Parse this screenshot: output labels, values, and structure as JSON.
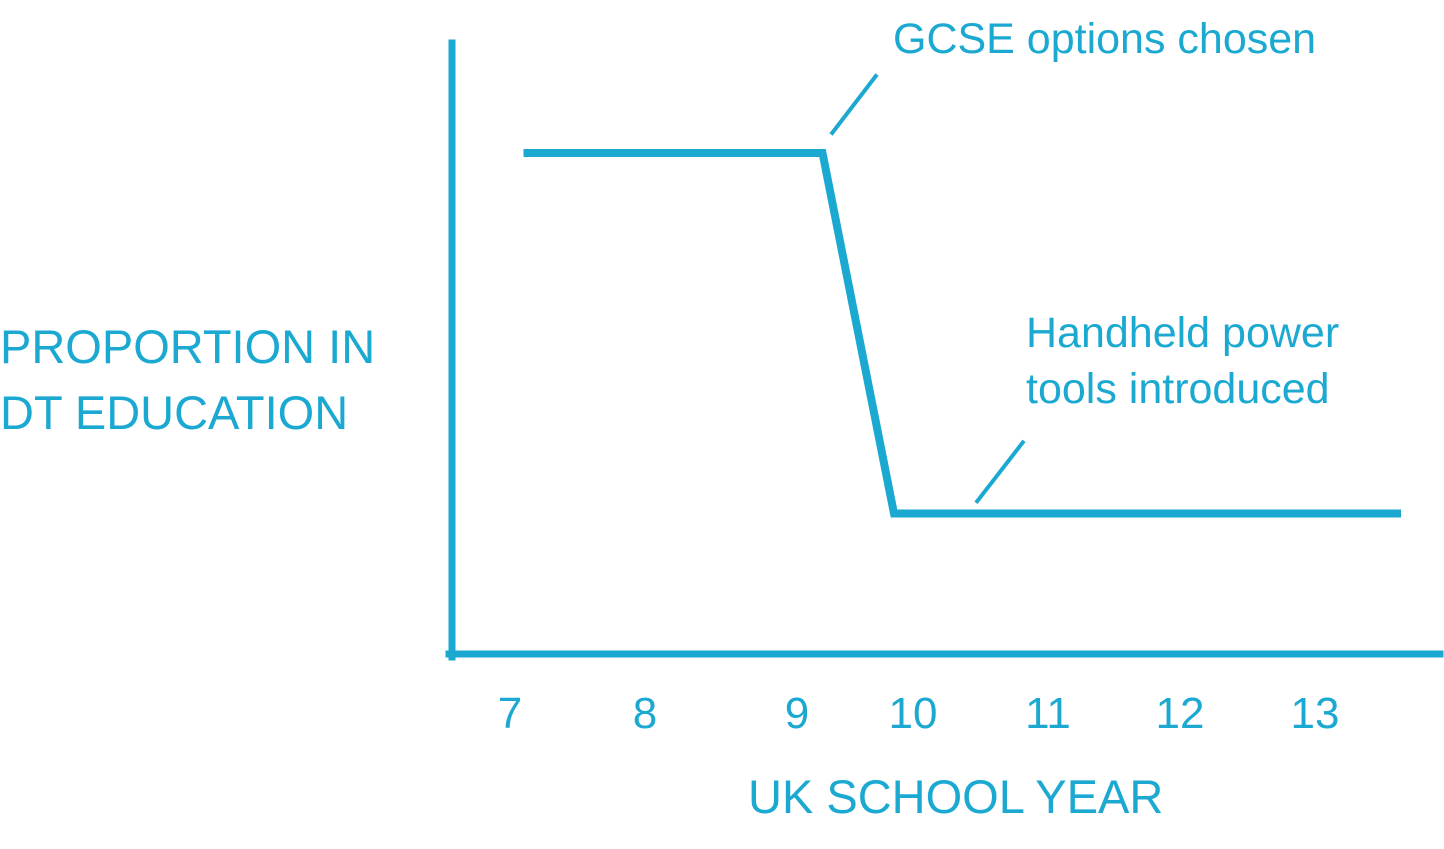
{
  "chart_data": {
    "type": "line",
    "title": "",
    "xlabel": "UK SCHOOL YEAR",
    "ylabel_lines": [
      "PROPORTION IN",
      "DT EDUCATION"
    ],
    "x_ticks": [
      "7",
      "8",
      "9",
      "10",
      "11",
      "12",
      "13"
    ],
    "series": [
      {
        "x": [
          6.95,
          9.25,
          9.8,
          13.7
        ],
        "y": [
          0.82,
          0.82,
          0.23,
          0.23
        ]
      }
    ],
    "xlim": [
      6.4,
      14.0
    ],
    "ylim": [
      0,
      1
    ],
    "annotations": [
      {
        "text": "GCSE options chosen",
        "x": 9.3,
        "y": 0.87
      },
      {
        "text": "Handheld power tools introduced",
        "x": 10.4,
        "y": 0.29
      }
    ],
    "grid": false,
    "color": "#1ba9d1"
  }
}
